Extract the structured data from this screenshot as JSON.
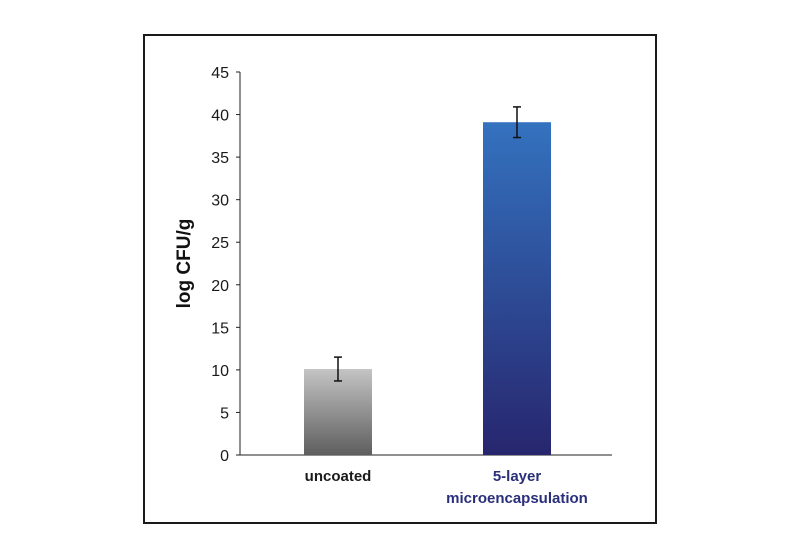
{
  "chart_data": {
    "type": "bar",
    "title": "",
    "xlabel": "",
    "ylabel": "log CFU/g",
    "ylim": [
      0,
      45
    ],
    "yticks": [
      0,
      5,
      10,
      15,
      20,
      25,
      30,
      35,
      40,
      45
    ],
    "grid": false,
    "legend": "none",
    "categories": [
      {
        "label_lines": [
          "uncoated"
        ],
        "label_color": "#1a1a1a"
      },
      {
        "label_lines": [
          "5-layer",
          "microencapsulation"
        ],
        "label_color": "#2a2f7a"
      }
    ],
    "values": [
      10.1,
      39.1
    ],
    "error": [
      1.4,
      1.8
    ],
    "bar_gradients": [
      {
        "top": "#c4c4c4",
        "bottom": "#5e5e5e"
      },
      {
        "top": "#3472bf",
        "bottom": "#27266e"
      }
    ]
  }
}
